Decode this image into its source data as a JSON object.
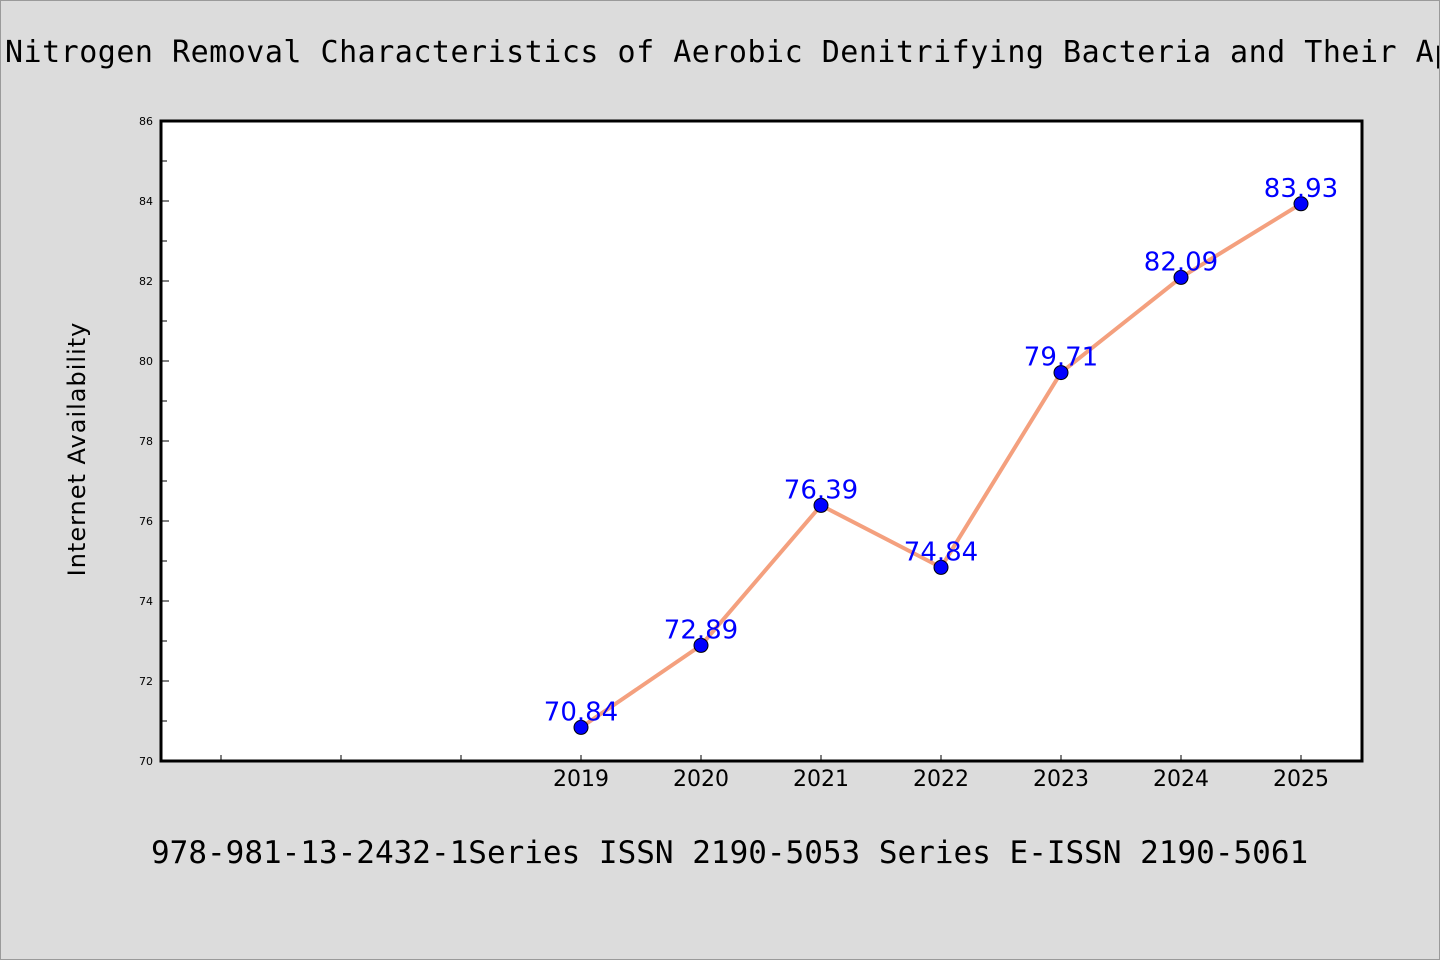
{
  "title": "Nitrogen Removal Characteristics of Aerobic Denitrifying Bacteria and Their Appl",
  "footer": "978-981-13-2432-1Series ISSN 2190-5053 Series E-ISSN 2190-5061",
  "colors": {
    "line": "#f4a07e",
    "marker": "#0000ff",
    "label": "#0000ff",
    "background": "#dcdcdc",
    "plot_background": "#ffffff"
  },
  "chart_data": {
    "type": "line",
    "title": "Nitrogen Removal Characteristics of Aerobic Denitrifying Bacteria and Their Appl",
    "xlabel": "",
    "ylabel": "Internet Availability",
    "categories": [
      "2019",
      "2020",
      "2021",
      "2022",
      "2023",
      "2024",
      "2025"
    ],
    "series": [
      {
        "values": [
          70.84,
          72.89,
          76.39,
          74.84,
          79.71,
          82.09,
          83.93
        ],
        "labels": [
          "70.84",
          "72.89",
          "76.39",
          "74.84",
          "79.71",
          "82.09",
          "83.93"
        ]
      }
    ],
    "ylim": [
      70,
      86
    ],
    "yticks": [
      "70",
      "72",
      "74",
      "76",
      "78",
      "80",
      "82",
      "84",
      "86"
    ],
    "grid": false,
    "legend": "none"
  }
}
